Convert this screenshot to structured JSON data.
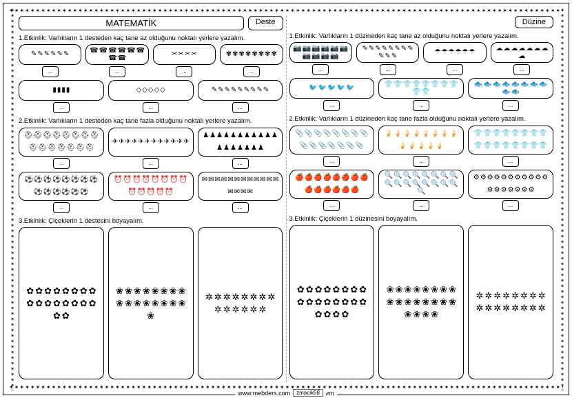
{
  "border_char": "✶",
  "border_repeat": 140,
  "border_repeat_v": 90,
  "left": {
    "title": "MATEMATİK",
    "tag": "Deste",
    "act1_text": "1.Etkinlik: Varlıkların 1 desteden kaç tane az olduğunu noktalı yerlere yazalım.",
    "act2_text": "2.Etkinlik: Varlıkların 1 desteden kaç tane fazla olduğunu noktalı yerlere yazalım.",
    "act3_text": "3.Etkinlik: Çiçeklerin 1 destesini boyayalım.",
    "answer_placeholder": "...",
    "act1_row1": [
      {
        "glyph": "✎",
        "count": 6
      },
      {
        "glyph": "☎",
        "count": 8
      },
      {
        "glyph": "✂",
        "count": 4
      },
      {
        "glyph": "✾",
        "count": 8
      }
    ],
    "act1_row2": [
      {
        "glyph": "▮",
        "count": 4
      },
      {
        "glyph": "◇",
        "count": 5
      },
      {
        "glyph": "✎",
        "count": 9
      }
    ],
    "act2_row1": [
      {
        "glyph": "⛑",
        "count": 15
      },
      {
        "glyph": "✈",
        "count": 12
      },
      {
        "glyph": "♟",
        "count": 18
      }
    ],
    "act2_row2": [
      {
        "glyph": "⚽",
        "count": 14
      },
      {
        "glyph": "⏰",
        "count": 13
      },
      {
        "glyph": "✉",
        "count": 16
      }
    ],
    "act3": [
      {
        "glyph": "✿",
        "count": 18
      },
      {
        "glyph": "❀",
        "count": 17
      },
      {
        "glyph": "✲",
        "count": 14
      }
    ]
  },
  "right": {
    "tag": "Düzine",
    "act1_text": "1.Etkinlik: Varlıkların 1 düzineden kaç tane az olduğunu noktalı yerlere yazalım.",
    "act2_text": "2.Etkinlik: Varlıkların 1 düzineden kaç tane fazla olduğunu noktalı yerlere yazalım.",
    "act3_text": "3.Etkinlik: Çiçeklerin 1 düzinesini boyayalım.",
    "answer_placeholder": "...",
    "act1_row1": [
      {
        "glyph": "📷",
        "count": 10
      },
      {
        "glyph": "✎",
        "count": 11
      },
      {
        "glyph": "☂",
        "count": 6
      },
      {
        "glyph": "☁",
        "count": 8
      }
    ],
    "act1_row2": [
      {
        "glyph": "🐦",
        "count": 5
      },
      {
        "glyph": "👕",
        "count": 10
      },
      {
        "glyph": "🐟",
        "count": 10
      }
    ],
    "act2_row1": [
      {
        "glyph": "📎",
        "count": 15
      },
      {
        "glyph": "🍦",
        "count": 13
      },
      {
        "glyph": "👕",
        "count": 16
      }
    ],
    "act2_row2": [
      {
        "glyph": "🍎",
        "count": 14
      },
      {
        "glyph": "🔍",
        "count": 17
      },
      {
        "glyph": "⚙",
        "count": 18
      }
    ],
    "act3": [
      {
        "glyph": "✿",
        "count": 20
      },
      {
        "glyph": "❀",
        "count": 20
      },
      {
        "glyph": "✲",
        "count": 16
      }
    ]
  },
  "footer": {
    "url": "www.mebders.com",
    "code": "zmacik58",
    "sig": "ƨm"
  },
  "colors": {
    "border": "#000000",
    "text": "#000000",
    "bg": "#ffffff"
  }
}
